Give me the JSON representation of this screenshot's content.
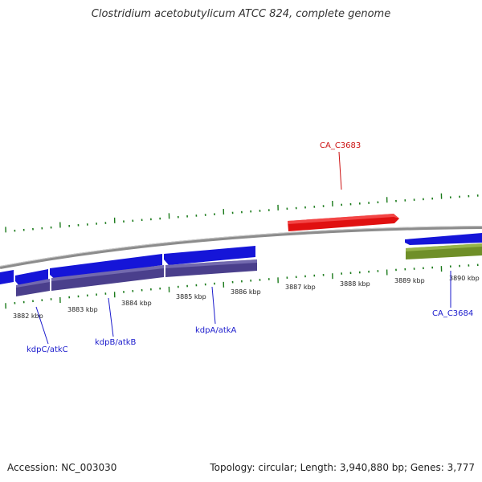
{
  "title": "Clostridium acetobutylicum ATCC 824, complete genome",
  "footer": {
    "accession": "Accession: NC_003030",
    "summary": "Topology: circular; Length: 3,940,880 bp; Genes: 3,777"
  },
  "colors": {
    "backbone": "#8c8c8c",
    "forward_cds": "#e01010",
    "reverse_cds": "#1515d8",
    "operon": "#4a3f8c",
    "other_feature": "#6f8f28",
    "ticks": "#1a7a1a",
    "label_blue": "#1a1acc",
    "label_red": "#cc1111"
  },
  "scale_labels": [
    "3882 kbp",
    "3883 kbp",
    "3884 kbp",
    "3885 kbp",
    "3886 kbp",
    "3887 kbp",
    "3888 kbp",
    "3889 kbp",
    "3890 kbp"
  ],
  "gene_labels": [
    {
      "text": "CA_C3683",
      "color": "red"
    },
    {
      "text": "kdpC/atkC",
      "color": "blue"
    },
    {
      "text": "kdpB/atkB",
      "color": "blue"
    },
    {
      "text": "kdpA/atkA",
      "color": "blue"
    },
    {
      "text": "CA_C3684",
      "color": "blue"
    }
  ]
}
